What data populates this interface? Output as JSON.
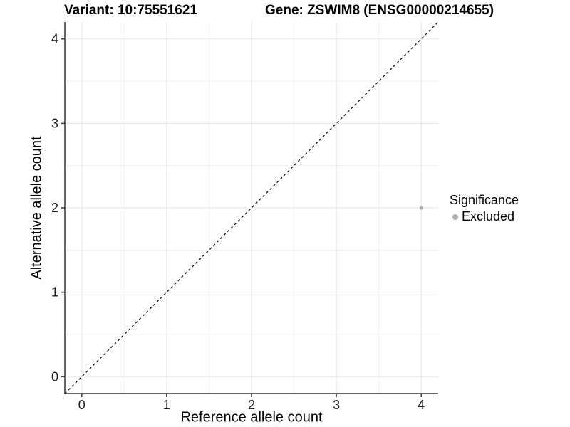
{
  "titles": {
    "variant": "Variant: 10:75551621",
    "gene": "Gene: ZSWIM8 (ENSG00000214655)"
  },
  "axes": {
    "x_label": "Reference allele count",
    "y_label": "Alternative allele count"
  },
  "legend": {
    "title": "Significance",
    "items": [
      {
        "label": "Excluded",
        "color": "#b0b0b0"
      }
    ]
  },
  "colors": {
    "background": "#ffffff",
    "grid_major": "#e3e3e3",
    "grid_minor": "#f0f0f0",
    "axis_line": "#333333",
    "tick_text": "#1c1c1c",
    "title_text": "#000000",
    "point": "#b0b0b0",
    "reference_line": "#000000"
  },
  "chart_data": {
    "type": "scatter",
    "title": "Variant: 10:75551621 — Gene: ZSWIM8 (ENSG00000214655)",
    "xlabel": "Reference allele count",
    "ylabel": "Alternative allele count",
    "xlim": [
      -0.2,
      4.2
    ],
    "ylim": [
      -0.2,
      4.2
    ],
    "x_ticks": [
      0,
      1,
      2,
      3,
      4
    ],
    "y_ticks": [
      0,
      1,
      2,
      3,
      4
    ],
    "x_minor_ticks": [
      0.5,
      1.5,
      2.5,
      3.5
    ],
    "y_minor_ticks": [
      0.5,
      1.5,
      2.5,
      3.5
    ],
    "grid": true,
    "legend_position": "right",
    "series": [
      {
        "name": "Excluded",
        "color": "#b0b0b0",
        "point_radius": 2.5,
        "points": [
          {
            "x": 4,
            "y": 2
          }
        ]
      }
    ],
    "reference_line": {
      "kind": "identity",
      "style": "dashed",
      "from": -0.2,
      "to": 4.2
    }
  }
}
